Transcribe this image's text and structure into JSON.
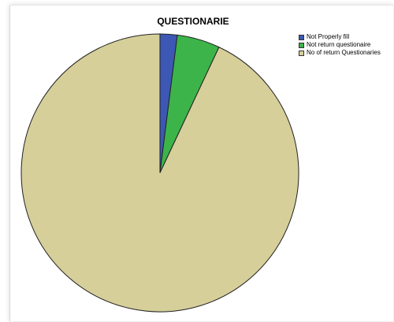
{
  "chart_data": {
    "type": "pie",
    "title": "QUESTIONARIE",
    "legend_position": "top-right",
    "categories": [
      "Not Properly fill",
      "Not return questionaire",
      "No of return Questionaries"
    ],
    "values": [
      2,
      5,
      93
    ],
    "colors": [
      "#3c58b4",
      "#3cb44a",
      "#d6cf9a"
    ]
  }
}
